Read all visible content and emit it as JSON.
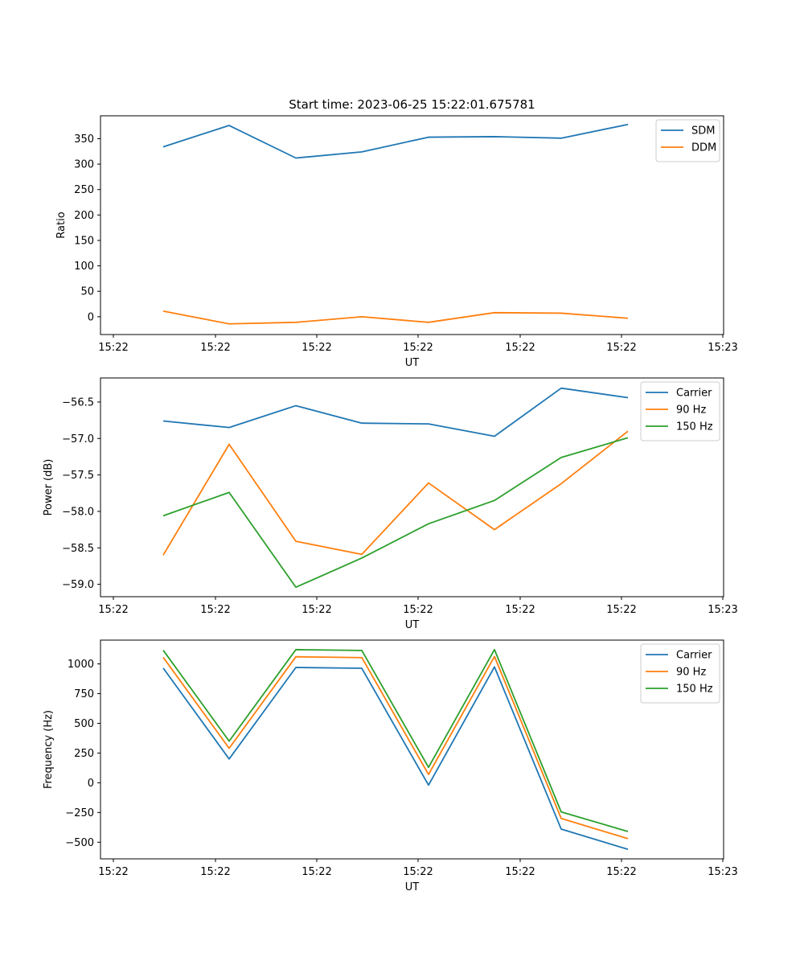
{
  "chart_data": [
    {
      "type": "line",
      "title": "Start time: 2023-06-25 15:22:01.675781",
      "xlabel": "UT",
      "ylabel": "Ratio",
      "x_tick_labels": [
        "15:22",
        "15:22",
        "15:22",
        "15:22",
        "15:22",
        "15:22",
        "15:23"
      ],
      "ylim": [
        -35,
        395
      ],
      "yticks": [
        0,
        50,
        100,
        150,
        200,
        250,
        300,
        350
      ],
      "legend_position": "top-right",
      "grid": false,
      "series": [
        {
          "name": "SDM",
          "color": "#1f77b4",
          "values": [
            334,
            376,
            312,
            324,
            353,
            354,
            351,
            378
          ]
        },
        {
          "name": "DDM",
          "color": "#ff7f0e",
          "values": [
            11,
            -14,
            -11,
            0,
            -11,
            8,
            7,
            -3
          ]
        }
      ]
    },
    {
      "type": "line",
      "title": "",
      "xlabel": "UT",
      "ylabel": "Power (dB)",
      "x_tick_labels": [
        "15:22",
        "15:22",
        "15:22",
        "15:22",
        "15:22",
        "15:22",
        "15:23"
      ],
      "ylim": [
        -59.17,
        -56.17
      ],
      "yticks": [
        -59.0,
        -58.5,
        -58.0,
        -57.5,
        -57.0,
        -56.5
      ],
      "ytick_labels": [
        "−59.0",
        "−58.5",
        "−58.0",
        "−57.5",
        "−57.0",
        "−56.5"
      ],
      "legend_position": "top-right",
      "grid": false,
      "series": [
        {
          "name": "Carrier",
          "color": "#1f77b4",
          "values": [
            -56.76,
            -56.85,
            -56.55,
            -56.79,
            -56.8,
            -56.97,
            -56.31,
            -56.44
          ]
        },
        {
          "name": "90 Hz",
          "color": "#ff7f0e",
          "values": [
            -58.6,
            -57.08,
            -58.41,
            -58.59,
            -57.61,
            -58.25,
            -57.62,
            -56.9
          ]
        },
        {
          "name": "150 Hz",
          "color": "#2ca02c",
          "values": [
            -58.06,
            -57.74,
            -59.04,
            -58.64,
            -58.17,
            -57.85,
            -57.26,
            -56.99
          ]
        }
      ]
    },
    {
      "type": "line",
      "title": "",
      "xlabel": "UT",
      "ylabel": "Frequency (Hz)",
      "x_tick_labels": [
        "15:22",
        "15:22",
        "15:22",
        "15:22",
        "15:22",
        "15:22",
        "15:23"
      ],
      "ylim": [
        -640,
        1200
      ],
      "yticks": [
        -500,
        -250,
        0,
        250,
        500,
        750,
        1000
      ],
      "ytick_labels": [
        "−500",
        "−250",
        "0",
        "250",
        "500",
        "750",
        "1000"
      ],
      "legend_position": "top-right",
      "grid": false,
      "series": [
        {
          "name": "Carrier",
          "color": "#1f77b4",
          "values": [
            965,
            200,
            970,
            963,
            -20,
            975,
            -390,
            -560
          ]
        },
        {
          "name": "90 Hz",
          "color": "#ff7f0e",
          "values": [
            1055,
            290,
            1060,
            1053,
            70,
            1062,
            -300,
            -470
          ]
        },
        {
          "name": "150 Hz",
          "color": "#2ca02c",
          "values": [
            1115,
            350,
            1120,
            1113,
            130,
            1120,
            -245,
            -410
          ]
        }
      ]
    }
  ]
}
